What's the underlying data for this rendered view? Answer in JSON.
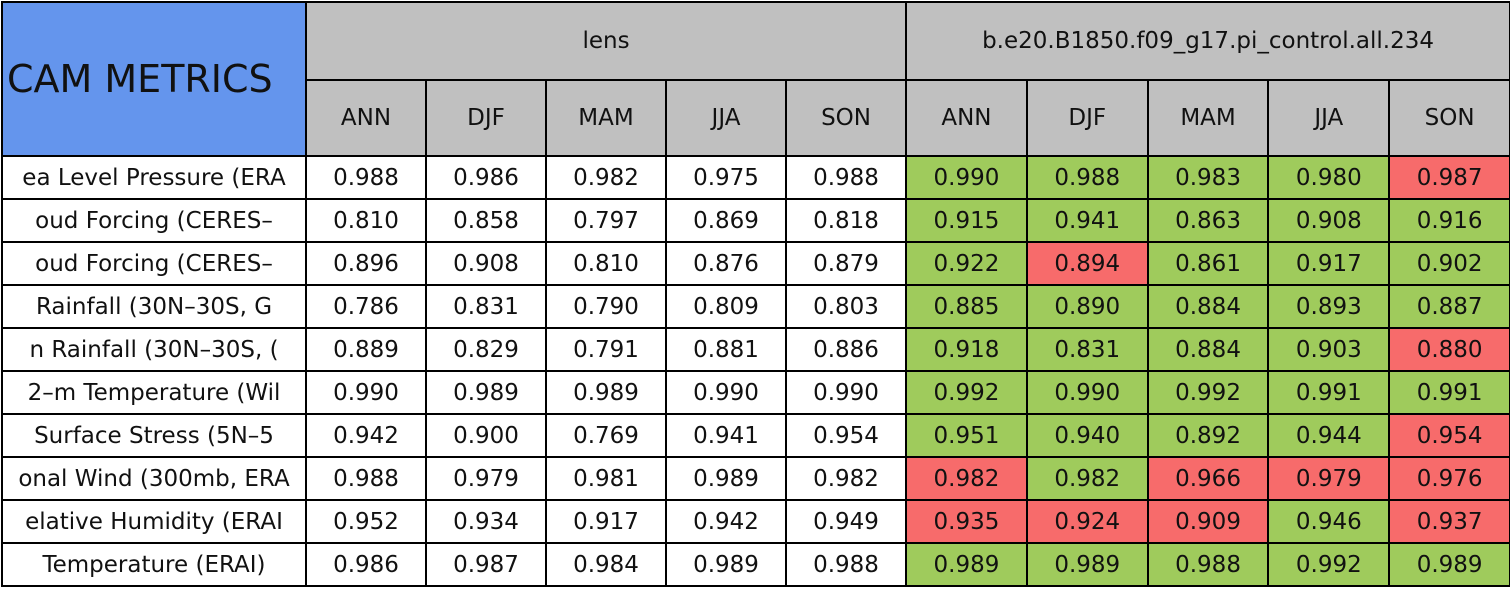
{
  "header": {
    "title": "CAM METRICS",
    "groups": [
      "lens",
      "b.e20.B1850.f09_g17.pi_control.all.234"
    ],
    "seasons": [
      [
        "ANN",
        "DJF",
        "MAM",
        "JJA",
        "SON"
      ],
      [
        "ANN",
        "DJF",
        "MAM",
        "JJA",
        "SON"
      ]
    ]
  },
  "palette": {
    "header": "#c0c0c0",
    "title": "#6495ed",
    "plain": "#ffffff",
    "good": "#9fcb5c",
    "bad": "#f76b6b"
  },
  "table": {
    "rows": [
      {
        "label": "ea Level Pressure (ERA",
        "values": [
          "0.988",
          "0.986",
          "0.982",
          "0.975",
          "0.988",
          "0.990",
          "0.988",
          "0.983",
          "0.980",
          "0.987"
        ],
        "flags": [
          "good",
          "good",
          "good",
          "good",
          "bad"
        ]
      },
      {
        "label": "oud Forcing (CERES–",
        "values": [
          "0.810",
          "0.858",
          "0.797",
          "0.869",
          "0.818",
          "0.915",
          "0.941",
          "0.863",
          "0.908",
          "0.916"
        ],
        "flags": [
          "good",
          "good",
          "good",
          "good",
          "good"
        ]
      },
      {
        "label": "oud Forcing (CERES–",
        "values": [
          "0.896",
          "0.908",
          "0.810",
          "0.876",
          "0.879",
          "0.922",
          "0.894",
          "0.861",
          "0.917",
          "0.902"
        ],
        "flags": [
          "good",
          "bad",
          "good",
          "good",
          "good"
        ]
      },
      {
        "label": "Rainfall (30N–30S, G",
        "values": [
          "0.786",
          "0.831",
          "0.790",
          "0.809",
          "0.803",
          "0.885",
          "0.890",
          "0.884",
          "0.893",
          "0.887"
        ],
        "flags": [
          "good",
          "good",
          "good",
          "good",
          "good"
        ]
      },
      {
        "label": "n Rainfall (30N–30S, (",
        "values": [
          "0.889",
          "0.829",
          "0.791",
          "0.881",
          "0.886",
          "0.918",
          "0.831",
          "0.884",
          "0.903",
          "0.880"
        ],
        "flags": [
          "good",
          "good",
          "good",
          "good",
          "bad"
        ]
      },
      {
        "label": "2–m Temperature (Wil",
        "values": [
          "0.990",
          "0.989",
          "0.989",
          "0.990",
          "0.990",
          "0.992",
          "0.990",
          "0.992",
          "0.991",
          "0.991"
        ],
        "flags": [
          "good",
          "good",
          "good",
          "good",
          "good"
        ]
      },
      {
        "label": "Surface Stress (5N–5",
        "values": [
          "0.942",
          "0.900",
          "0.769",
          "0.941",
          "0.954",
          "0.951",
          "0.940",
          "0.892",
          "0.944",
          "0.954"
        ],
        "flags": [
          "good",
          "good",
          "good",
          "good",
          "bad"
        ]
      },
      {
        "label": "onal Wind (300mb, ERA",
        "values": [
          "0.988",
          "0.979",
          "0.981",
          "0.989",
          "0.982",
          "0.982",
          "0.982",
          "0.966",
          "0.979",
          "0.976"
        ],
        "flags": [
          "bad",
          "good",
          "bad",
          "bad",
          "bad"
        ]
      },
      {
        "label": "elative Humidity (ERAI",
        "values": [
          "0.952",
          "0.934",
          "0.917",
          "0.942",
          "0.949",
          "0.935",
          "0.924",
          "0.909",
          "0.946",
          "0.937"
        ],
        "flags": [
          "bad",
          "bad",
          "bad",
          "good",
          "bad"
        ]
      },
      {
        "label": "Temperature (ERAI)",
        "values": [
          "0.986",
          "0.987",
          "0.984",
          "0.989",
          "0.988",
          "0.989",
          "0.989",
          "0.988",
          "0.992",
          "0.989"
        ],
        "flags": [
          "good",
          "good",
          "good",
          "good",
          "good"
        ]
      }
    ]
  }
}
